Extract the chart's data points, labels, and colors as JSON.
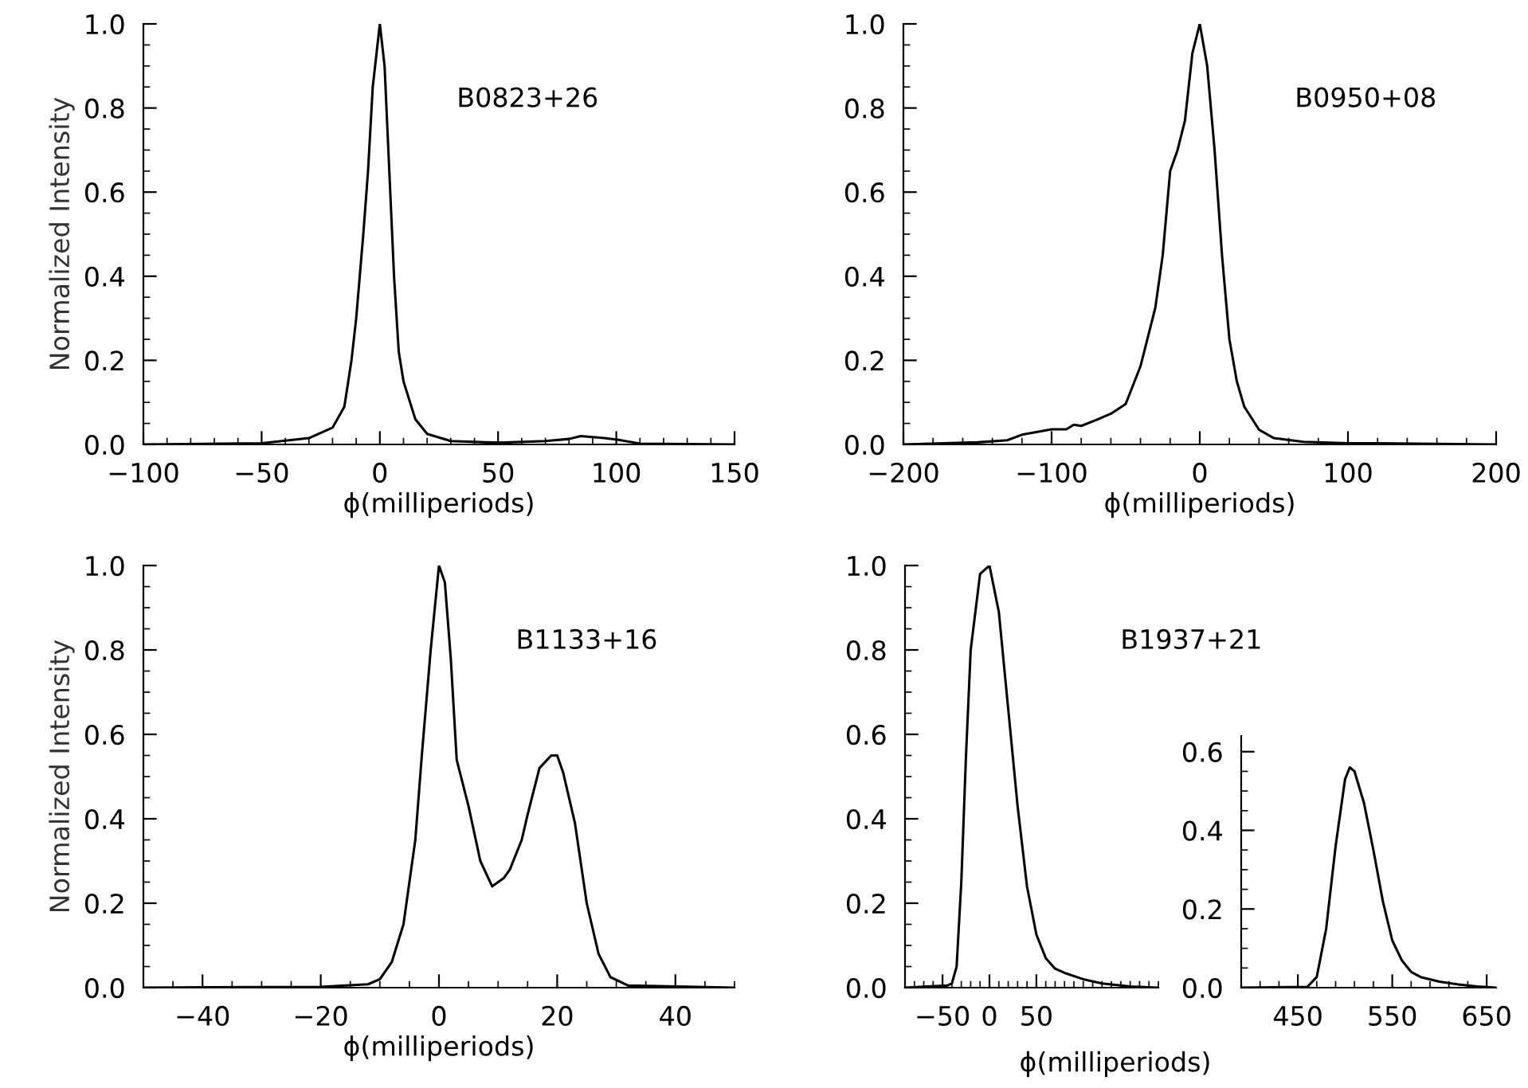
{
  "chart_data": [
    {
      "type": "line",
      "ylabel": "Normalized Intensity",
      "xlabel": "ϕ(milliperiods)",
      "annotations": [
        "B0823+26"
      ],
      "xlim": [
        -100,
        150
      ],
      "xticks": [
        -100,
        -50,
        0,
        50,
        100,
        150
      ],
      "ylim": [
        0,
        1.0
      ],
      "yticks": [
        {
          "value": 0,
          "label": "0.0"
        },
        {
          "value": 0.2,
          "label": "0.2"
        },
        {
          "value": 0.4,
          "label": "0.4"
        },
        {
          "value": 0.6,
          "label": "0.6"
        },
        {
          "value": 0.8,
          "label": "0.8"
        },
        {
          "value": 1,
          "label": "1.0"
        }
      ],
      "series": [
        {
          "color": "#000000",
          "x": [
            -100,
            -50,
            -30,
            -20,
            -15,
            -12,
            -10,
            -7,
            -5,
            -3,
            0,
            2,
            4,
            6,
            8,
            10,
            15,
            20,
            30,
            50,
            70,
            80,
            85,
            95,
            100,
            110,
            150
          ],
          "values": [
            0,
            0.003,
            0.015,
            0.04,
            0.09,
            0.2,
            0.3,
            0.5,
            0.65,
            0.85,
            1.0,
            0.9,
            0.65,
            0.4,
            0.22,
            0.15,
            0.06,
            0.025,
            0.008,
            0.004,
            0.008,
            0.013,
            0.02,
            0.015,
            0.012,
            0.002,
            0
          ]
        }
      ]
    },
    {
      "type": "line",
      "xlabel": "ϕ(milliperiods)",
      "annotations": [
        "B0950+08"
      ],
      "xlim": [
        -200,
        200
      ],
      "xticks": [
        -200,
        -100,
        0,
        100,
        200
      ],
      "ylim": [
        0,
        1.0
      ],
      "yticks": [
        {
          "value": 0,
          "label": "0.0"
        },
        {
          "value": 0.2,
          "label": "0.2"
        },
        {
          "value": 0.4,
          "label": "0.4"
        },
        {
          "value": 0.6,
          "label": "0.6"
        },
        {
          "value": 0.8,
          "label": "0.8"
        },
        {
          "value": 1,
          "label": "1.0"
        }
      ],
      "series": [
        {
          "color": "#000000",
          "x": [
            -200,
            -150,
            -130,
            -120,
            -100,
            -90,
            -85,
            -80,
            -70,
            -60,
            -50,
            -40,
            -30,
            -25,
            -20,
            -15,
            -10,
            -5,
            0,
            5,
            10,
            15,
            20,
            25,
            30,
            40,
            50,
            70,
            100,
            120,
            200
          ],
          "values": [
            0,
            0.005,
            0.01,
            0.023,
            0.036,
            0.036,
            0.047,
            0.044,
            0.058,
            0.073,
            0.096,
            0.186,
            0.325,
            0.45,
            0.65,
            0.7,
            0.77,
            0.93,
            1.0,
            0.9,
            0.7,
            0.45,
            0.25,
            0.15,
            0.09,
            0.035,
            0.015,
            0.006,
            0.003,
            0.003,
            0
          ]
        }
      ]
    },
    {
      "type": "line",
      "ylabel": "Normalized Intensity",
      "xlabel": "ϕ(milliperiods)",
      "annotations": [
        "B1133+16"
      ],
      "xlim": [
        -50,
        50
      ],
      "xticks": [
        -40,
        -20,
        0,
        20,
        40
      ],
      "ylim": [
        0,
        1.0
      ],
      "yticks": [
        {
          "value": 0,
          "label": "0.0"
        },
        {
          "value": 0.2,
          "label": "0.2"
        },
        {
          "value": 0.4,
          "label": "0.4"
        },
        {
          "value": 0.6,
          "label": "0.6"
        },
        {
          "value": 0.8,
          "label": "0.8"
        },
        {
          "value": 1,
          "label": "1.0"
        }
      ],
      "series": [
        {
          "color": "#000000",
          "x": [
            -50,
            -20,
            -12,
            -10,
            -8,
            -6,
            -4,
            -2.9,
            -1.4,
            0,
            1,
            2,
            3,
            5,
            7,
            9,
            11,
            12,
            14,
            15,
            17,
            19,
            20,
            21,
            23,
            25,
            27,
            29,
            32,
            50
          ],
          "values": [
            0,
            0.002,
            0.008,
            0.02,
            0.06,
            0.15,
            0.35,
            0.55,
            0.8,
            1.0,
            0.96,
            0.78,
            0.54,
            0.43,
            0.3,
            0.24,
            0.26,
            0.28,
            0.35,
            0.41,
            0.52,
            0.55,
            0.55,
            0.51,
            0.39,
            0.2,
            0.08,
            0.025,
            0.005,
            0
          ]
        }
      ]
    },
    {
      "type": "line",
      "xlabel": "ϕ(milliperiods)",
      "annotations": [
        "B1937+21"
      ],
      "xlim": [
        -90,
        180
      ],
      "xticks": [
        -50,
        0,
        50
      ],
      "ylim": [
        0,
        1.0
      ],
      "yticks": [
        {
          "value": 0,
          "label": "0.0"
        },
        {
          "value": 0.2,
          "label": "0.2"
        },
        {
          "value": 0.4,
          "label": "0.4"
        },
        {
          "value": 0.6,
          "label": "0.6"
        },
        {
          "value": 0.8,
          "label": "0.8"
        },
        {
          "value": 1,
          "label": "1.0"
        }
      ],
      "series": [
        {
          "color": "#000000",
          "x": [
            -90,
            -45,
            -40,
            -35,
            -30,
            -25,
            -20,
            -10,
            0,
            10,
            20,
            30,
            40,
            50,
            60,
            70,
            80,
            100,
            120,
            150,
            180
          ],
          "values": [
            0,
            0.005,
            0.01,
            0.05,
            0.25,
            0.55,
            0.8,
            0.98,
            1.0,
            0.89,
            0.66,
            0.43,
            0.24,
            0.126,
            0.07,
            0.045,
            0.035,
            0.02,
            0.01,
            0.003,
            0
          ]
        }
      ]
    },
    {
      "type": "line",
      "xlim": [
        390,
        660
      ],
      "xticks": [
        450,
        550,
        650
      ],
      "ylim": [
        0,
        0.64
      ],
      "yticks": [
        {
          "value": 0,
          "label": "0.0"
        },
        {
          "value": 0.2,
          "label": "0.2"
        },
        {
          "value": 0.4,
          "label": "0.4"
        },
        {
          "value": 0.6,
          "label": "0.6"
        }
      ],
      "series": [
        {
          "color": "#000000",
          "x": [
            390,
            460,
            470,
            480,
            490,
            500,
            505,
            510,
            520,
            530,
            540,
            550,
            560,
            570,
            580,
            600,
            620,
            640,
            660
          ],
          "values": [
            0,
            0.002,
            0.027,
            0.15,
            0.36,
            0.53,
            0.56,
            0.55,
            0.47,
            0.35,
            0.22,
            0.12,
            0.07,
            0.04,
            0.027,
            0.015,
            0.008,
            0.003,
            0
          ]
        }
      ]
    }
  ]
}
